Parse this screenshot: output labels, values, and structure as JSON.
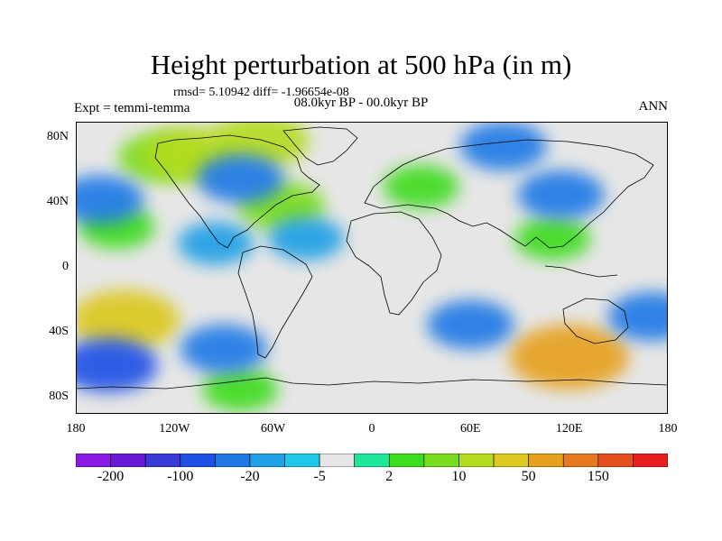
{
  "title": "Height perturbation at 500 hPa (in m)",
  "stats": "rmsd= 5.10942 diff= -1.96654e-08",
  "period": "08.0kyr BP - 00.0kyr BP",
  "experiment": "Expt = temmi-temma",
  "season": "ANN",
  "map": {
    "projection": "cylindrical equidistant",
    "lon_range": [
      -180,
      180
    ],
    "lat_range": [
      -90,
      90
    ],
    "ocean_color": "#e6e6e6",
    "coastline_color": "#000000",
    "lat_ticks": [
      {
        "lat": 80,
        "label": "80N"
      },
      {
        "lat": 40,
        "label": "40N"
      },
      {
        "lat": 0,
        "label": "0"
      },
      {
        "lat": -40,
        "label": "40S"
      },
      {
        "lat": -80,
        "label": "80S"
      }
    ],
    "lon_ticks": [
      {
        "lon": -180,
        "label": "180"
      },
      {
        "lon": -120,
        "label": "120W"
      },
      {
        "lon": -60,
        "label": "60W"
      },
      {
        "lon": 0,
        "label": "0"
      },
      {
        "lon": 60,
        "label": "60E"
      },
      {
        "lon": 120,
        "label": "120E"
      },
      {
        "lon": 180,
        "label": "180"
      }
    ],
    "anomaly_fields": [
      {
        "lon": -128,
        "lat": 68,
        "level": 3,
        "name": "canada-greenland-positive"
      },
      {
        "lon": -110,
        "lat": 70,
        "level": 4,
        "name": "canada-core-positive"
      },
      {
        "lon": -68,
        "lat": 78,
        "level": 4,
        "name": "greenland-positive"
      },
      {
        "lon": -55,
        "lat": 38,
        "level": 3,
        "name": "north-atlantic-positive"
      },
      {
        "lon": 30,
        "lat": 50,
        "level": 2,
        "name": "europe-positive"
      },
      {
        "lon": 110,
        "lat": 18,
        "level": 2,
        "name": "east-asia-positive"
      },
      {
        "lon": -155,
        "lat": 25,
        "level": 2,
        "name": "north-pacific-positive"
      },
      {
        "lon": -150,
        "lat": -32,
        "level": 5,
        "name": "south-pacific-positive"
      },
      {
        "lon": 120,
        "lat": -55,
        "level": 6,
        "name": "indian-ocean-positive"
      },
      {
        "lon": -80,
        "lat": -75,
        "level": 2,
        "name": "antarctic-positive"
      },
      {
        "lon": -165,
        "lat": 42,
        "level": -3,
        "name": "north-pacific-negative"
      },
      {
        "lon": -80,
        "lat": 55,
        "level": -3,
        "name": "hudson-negative"
      },
      {
        "lon": 80,
        "lat": 75,
        "level": -3,
        "name": "siberia-negative"
      },
      {
        "lon": 115,
        "lat": 45,
        "level": -3,
        "name": "east-asia-negative"
      },
      {
        "lon": -40,
        "lat": 18,
        "level": -2,
        "name": "tropical-atlantic-negative"
      },
      {
        "lon": -95,
        "lat": 15,
        "level": -2,
        "name": "central-america-negative"
      },
      {
        "lon": -160,
        "lat": -60,
        "level": -4,
        "name": "southern-pacific-negative"
      },
      {
        "lon": -90,
        "lat": -50,
        "level": -3,
        "name": "patagonia-negative"
      },
      {
        "lon": 60,
        "lat": -35,
        "level": -3,
        "name": "south-indian-negative"
      },
      {
        "lon": 170,
        "lat": -30,
        "level": -3,
        "name": "tasman-negative"
      }
    ]
  },
  "colorbar": {
    "colors": [
      "#8c1ae6",
      "#6a1ad6",
      "#3a3ad6",
      "#1e50e6",
      "#1e78e6",
      "#1e9fe6",
      "#1ec8e6",
      "#e6e6e6",
      "#1ee69a",
      "#3cdc1e",
      "#78dc1e",
      "#b4dc1e",
      "#dcc81e",
      "#e6a01e",
      "#e6781e",
      "#e6501e",
      "#e61e1e"
    ],
    "labels": [
      {
        "after": 1,
        "text": "-200"
      },
      {
        "after": 3,
        "text": "-100"
      },
      {
        "after": 5,
        "text": "-20"
      },
      {
        "after": 7,
        "text": "-5"
      },
      {
        "after": 9,
        "text": "2"
      },
      {
        "after": 11,
        "text": "10"
      },
      {
        "after": 13,
        "text": "50"
      },
      {
        "after": 15,
        "text": "150"
      }
    ]
  }
}
